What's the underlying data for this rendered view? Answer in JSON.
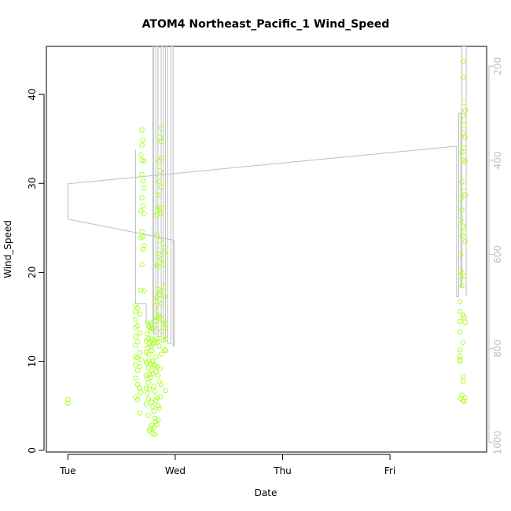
{
  "chart_data": {
    "type": "scatter",
    "title": "ATOM4 Northeast_Pacific_1 Wind_Speed",
    "xlabel": "Date",
    "ylabel": "Wind_Speed",
    "x_ticks": [
      {
        "t": 0.0,
        "label": "Tue"
      },
      {
        "t": 1.0,
        "label": "Wed"
      },
      {
        "t": 2.0,
        "label": "Thu"
      },
      {
        "t": 3.0,
        "label": "Fri"
      }
    ],
    "xlim": [
      -0.2,
      3.9
    ],
    "ylim": [
      -0.2,
      45.4
    ],
    "y_ticks": [
      0,
      10,
      20,
      30,
      40
    ],
    "y2_ticks": [
      200,
      400,
      600,
      800,
      1000
    ],
    "y2lim": [
      1020,
      158
    ],
    "grid": false,
    "point_color": "#adff2f",
    "line_color": "#bebebe",
    "series": [
      {
        "type": "points",
        "points": [
          [
            0.0,
            5.7
          ],
          [
            0.0,
            5.3
          ],
          [
            0.63,
            16.3
          ],
          [
            0.63,
            15.6
          ],
          [
            0.63,
            14.7
          ],
          [
            0.63,
            13.8
          ],
          [
            0.63,
            12.8
          ],
          [
            0.63,
            11.8
          ],
          [
            0.63,
            10.5
          ],
          [
            0.63,
            9.6
          ],
          [
            0.63,
            8.1
          ],
          [
            0.63,
            6.0
          ],
          [
            0.65,
            16.0
          ],
          [
            0.65,
            14.0
          ],
          [
            0.65,
            12.2
          ],
          [
            0.65,
            10.4
          ],
          [
            0.65,
            9.0
          ],
          [
            0.65,
            7.4
          ],
          [
            0.65,
            5.7
          ],
          [
            0.67,
            15.3
          ],
          [
            0.67,
            13.2
          ],
          [
            0.67,
            11.0
          ],
          [
            0.67,
            9.4
          ],
          [
            0.67,
            7.0
          ],
          [
            0.67,
            4.2
          ],
          [
            0.68,
            33.2
          ],
          [
            0.68,
            26.9
          ],
          [
            0.68,
            23.9
          ],
          [
            0.68,
            18.0
          ],
          [
            0.68,
            10.2
          ],
          [
            0.68,
            6.5
          ],
          [
            0.69,
            36.0
          ],
          [
            0.69,
            34.3
          ],
          [
            0.69,
            32.6
          ],
          [
            0.69,
            31.0
          ],
          [
            0.69,
            28.4
          ],
          [
            0.69,
            24.6
          ],
          [
            0.69,
            20.9
          ],
          [
            0.7,
            34.9
          ],
          [
            0.7,
            30.3
          ],
          [
            0.7,
            27.5
          ],
          [
            0.7,
            24.0
          ],
          [
            0.7,
            22.6
          ],
          [
            0.71,
            32.5
          ],
          [
            0.71,
            29.5
          ],
          [
            0.71,
            26.6
          ],
          [
            0.71,
            23.0
          ],
          [
            0.71,
            17.9
          ],
          [
            0.73,
            12.3
          ],
          [
            0.73,
            11.0
          ],
          [
            0.73,
            9.9
          ],
          [
            0.73,
            8.4
          ],
          [
            0.73,
            7.0
          ],
          [
            0.73,
            5.2
          ],
          [
            0.74,
            14.4
          ],
          [
            0.74,
            13.1
          ],
          [
            0.74,
            11.5
          ],
          [
            0.74,
            9.8
          ],
          [
            0.74,
            8.0
          ],
          [
            0.74,
            6.4
          ],
          [
            0.75,
            13.9
          ],
          [
            0.75,
            12.5
          ],
          [
            0.75,
            10.8
          ],
          [
            0.75,
            9.3
          ],
          [
            0.75,
            7.6
          ],
          [
            0.75,
            5.8
          ],
          [
            0.75,
            3.9
          ],
          [
            0.76,
            14.0
          ],
          [
            0.76,
            12.0
          ],
          [
            0.76,
            10.1
          ],
          [
            0.76,
            8.5
          ],
          [
            0.76,
            6.9
          ],
          [
            0.76,
            2.2
          ],
          [
            0.77,
            13.4
          ],
          [
            0.77,
            11.7
          ],
          [
            0.77,
            9.7
          ],
          [
            0.77,
            8.2
          ],
          [
            0.77,
            2.4
          ],
          [
            0.78,
            14.1
          ],
          [
            0.78,
            12.6
          ],
          [
            0.78,
            11.2
          ],
          [
            0.78,
            9.0
          ],
          [
            0.78,
            5.4
          ],
          [
            0.78,
            2.8
          ],
          [
            0.79,
            13.6
          ],
          [
            0.79,
            11.9
          ],
          [
            0.79,
            10.0
          ],
          [
            0.79,
            8.6
          ],
          [
            0.79,
            4.9
          ],
          [
            0.79,
            1.9
          ],
          [
            0.8,
            14.5
          ],
          [
            0.8,
            12.4
          ],
          [
            0.8,
            9.6
          ],
          [
            0.8,
            7.2
          ],
          [
            0.8,
            4.4
          ],
          [
            0.8,
            2.5
          ],
          [
            0.81,
            16.0
          ],
          [
            0.81,
            12.1
          ],
          [
            0.81,
            9.5
          ],
          [
            0.81,
            6.6
          ],
          [
            0.81,
            3.6
          ],
          [
            0.81,
            1.8
          ],
          [
            0.82,
            16.7
          ],
          [
            0.82,
            14.1
          ],
          [
            0.82,
            10.5
          ],
          [
            0.82,
            8.8
          ],
          [
            0.82,
            5.6
          ],
          [
            0.82,
            3.2
          ],
          [
            0.83,
            26.5
          ],
          [
            0.83,
            24.2
          ],
          [
            0.83,
            20.8
          ],
          [
            0.83,
            17.2
          ],
          [
            0.83,
            14.9
          ],
          [
            0.83,
            12.5
          ],
          [
            0.83,
            9.4
          ],
          [
            0.83,
            5.9
          ],
          [
            0.83,
            2.9
          ],
          [
            0.84,
            28.7
          ],
          [
            0.84,
            26.9
          ],
          [
            0.84,
            22.1
          ],
          [
            0.84,
            18.1
          ],
          [
            0.84,
            15.2
          ],
          [
            0.84,
            12.2
          ],
          [
            0.84,
            8.4
          ],
          [
            0.84,
            5.0
          ],
          [
            0.84,
            3.4
          ],
          [
            0.85,
            32.5
          ],
          [
            0.85,
            30.2
          ],
          [
            0.85,
            27.3
          ],
          [
            0.85,
            20.7
          ],
          [
            0.85,
            17.5
          ],
          [
            0.85,
            14.8
          ],
          [
            0.85,
            11.7
          ],
          [
            0.85,
            7.7
          ],
          [
            0.85,
            4.7
          ],
          [
            0.86,
            35.2
          ],
          [
            0.86,
            31.4
          ],
          [
            0.86,
            26.6
          ],
          [
            0.86,
            23.6
          ],
          [
            0.86,
            17.8
          ],
          [
            0.86,
            15.0
          ],
          [
            0.86,
            9.2
          ],
          [
            0.86,
            6.0
          ],
          [
            0.87,
            36.2
          ],
          [
            0.87,
            34.7
          ],
          [
            0.87,
            32.8
          ],
          [
            0.87,
            29.6
          ],
          [
            0.87,
            27.2
          ],
          [
            0.87,
            21.5
          ],
          [
            0.87,
            16.5
          ],
          [
            0.87,
            13.4
          ],
          [
            0.87,
            10.8
          ],
          [
            0.87,
            7.4
          ],
          [
            0.89,
            22.8
          ],
          [
            0.89,
            20.9
          ],
          [
            0.89,
            18.4
          ],
          [
            0.89,
            14.2
          ],
          [
            0.89,
            12.4
          ],
          [
            0.9,
            22.2
          ],
          [
            0.9,
            17.3
          ],
          [
            0.9,
            14.4
          ],
          [
            0.9,
            11.3
          ],
          [
            0.91,
            13.7
          ],
          [
            0.91,
            12.5
          ],
          [
            0.91,
            11.2
          ],
          [
            0.91,
            6.7
          ],
          [
            3.65,
            16.7
          ],
          [
            3.65,
            15.6
          ],
          [
            3.65,
            14.5
          ],
          [
            3.65,
            13.3
          ],
          [
            3.65,
            11.3
          ],
          [
            3.65,
            10.6
          ],
          [
            3.65,
            10.2
          ],
          [
            3.65,
            10.0
          ],
          [
            3.66,
            28.3
          ],
          [
            3.66,
            25.9
          ],
          [
            3.66,
            22.0
          ],
          [
            3.66,
            20.2
          ],
          [
            3.66,
            19.5
          ],
          [
            3.66,
            5.8
          ],
          [
            3.67,
            33.5
          ],
          [
            3.67,
            30.2
          ],
          [
            3.67,
            27.0
          ],
          [
            3.67,
            24.1
          ],
          [
            3.67,
            18.5
          ],
          [
            3.67,
            6.2
          ],
          [
            3.68,
            43.7
          ],
          [
            3.68,
            41.9
          ],
          [
            3.68,
            37.6
          ],
          [
            3.68,
            35.7
          ],
          [
            3.68,
            32.6
          ],
          [
            3.68,
            25.2
          ],
          [
            3.68,
            15.2
          ],
          [
            3.68,
            12.1
          ],
          [
            3.68,
            8.3
          ],
          [
            3.68,
            7.8
          ],
          [
            3.68,
            5.6
          ],
          [
            3.69,
            39.1
          ],
          [
            3.69,
            36.6
          ],
          [
            3.69,
            34.0
          ],
          [
            3.69,
            29.1
          ],
          [
            3.69,
            24.5
          ],
          [
            3.69,
            19.6
          ],
          [
            3.69,
            14.9
          ],
          [
            3.69,
            5.5
          ],
          [
            3.7,
            38.2
          ],
          [
            3.7,
            35.2
          ],
          [
            3.7,
            32.5
          ],
          [
            3.7,
            28.7
          ],
          [
            3.7,
            23.5
          ],
          [
            3.7,
            14.4
          ],
          [
            3.7,
            5.9
          ]
        ]
      },
      {
        "type": "line",
        "y_axis": "right",
        "points": [
          [
            0.0,
            525
          ],
          [
            0.0,
            450
          ],
          [
            3.62,
            370
          ],
          [
            3.62,
            690
          ],
          [
            3.64,
            690
          ],
          [
            3.64,
            300
          ],
          [
            3.66,
            300
          ],
          [
            3.66,
            670
          ],
          [
            3.67,
            670
          ],
          [
            3.67,
            158
          ],
          [
            3.71,
            158
          ],
          [
            3.71,
            690
          ]
        ]
      },
      {
        "type": "line",
        "y_axis": "right",
        "points": [
          [
            0.0,
            525
          ],
          [
            0.99,
            570
          ],
          [
            0.99,
            795
          ],
          [
            0.98,
            795
          ],
          [
            0.98,
            158
          ],
          [
            0.96,
            158
          ],
          [
            0.96,
            790
          ],
          [
            0.93,
            790
          ],
          [
            0.93,
            158
          ],
          [
            0.91,
            158
          ],
          [
            0.91,
            780
          ],
          [
            0.89,
            780
          ],
          [
            0.89,
            158
          ],
          [
            0.87,
            158
          ],
          [
            0.87,
            775
          ],
          [
            0.84,
            775
          ],
          [
            0.84,
            158
          ],
          [
            0.82,
            158
          ],
          [
            0.82,
            770
          ],
          [
            0.8,
            770
          ],
          [
            0.8,
            158
          ],
          [
            0.79,
            158
          ],
          [
            0.79,
            760
          ],
          [
            0.76,
            760
          ],
          [
            0.76,
            745
          ],
          [
            0.73,
            745
          ],
          [
            0.73,
            705
          ],
          [
            0.68,
            705
          ],
          [
            0.68,
            705
          ],
          [
            0.63,
            705
          ],
          [
            0.63,
            378
          ]
        ]
      }
    ]
  }
}
